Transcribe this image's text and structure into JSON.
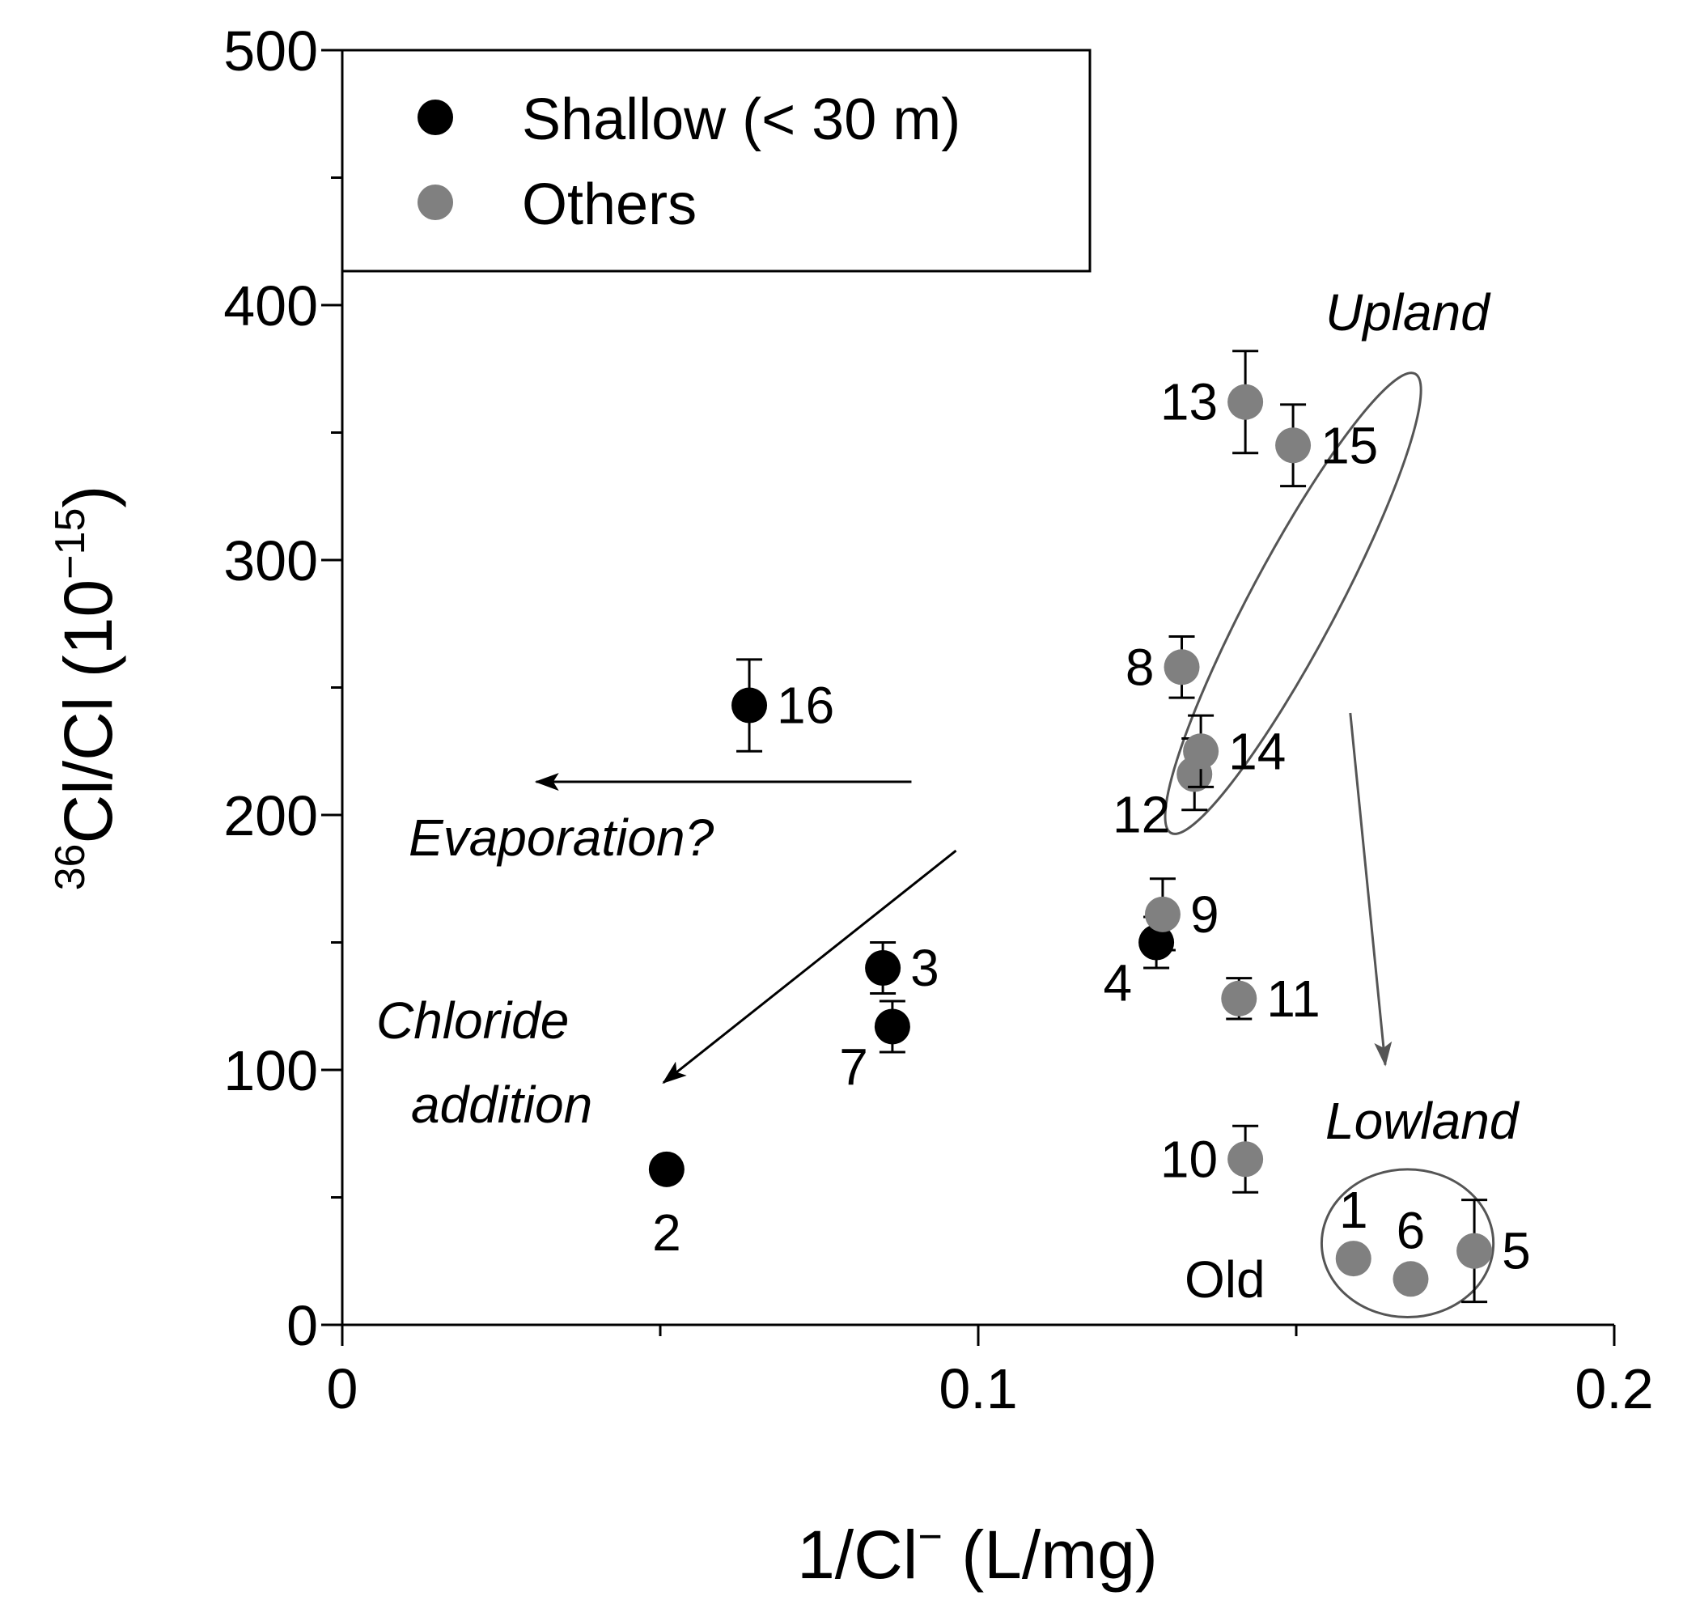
{
  "chart_data": {
    "type": "scatter",
    "title": "",
    "xlabel_main": "1/Cl",
    "xlabel_sup": "−",
    "xlabel_unit": " (L/mg)",
    "ylabel_sup": "36",
    "ylabel_main": "Cl/Cl (10",
    "ylabel_exp": "−15",
    "ylabel_close": ")",
    "xlim": [
      0,
      0.2
    ],
    "ylim": [
      0,
      500
    ],
    "x_ticks": [
      0,
      0.1,
      0.2
    ],
    "x_tick_labels": [
      "0",
      "0.1",
      "0.2"
    ],
    "y_ticks": [
      0,
      100,
      200,
      300,
      400,
      500
    ],
    "y_tick_labels": [
      "0",
      "100",
      "200",
      "300",
      "400",
      "500"
    ],
    "y_minor_step": 50,
    "legend": {
      "position": "top-left",
      "entries": [
        {
          "name": "Shallow (< 30 m)",
          "color": "#000000"
        },
        {
          "name": "Others",
          "color": "#808080"
        }
      ]
    },
    "series": [
      {
        "name": "Shallow (< 30 m)",
        "color": "#000000",
        "points": [
          {
            "id": "2",
            "x": 0.051,
            "y": 61,
            "err": 0,
            "label_pos": "below"
          },
          {
            "id": "3",
            "x": 0.085,
            "y": 140,
            "err": 10,
            "label_pos": "right"
          },
          {
            "id": "4",
            "x": 0.128,
            "y": 150,
            "err": 10,
            "label_pos": "below-left"
          },
          {
            "id": "7",
            "x": 0.0865,
            "y": 117,
            "err": 10,
            "label_pos": "below-left"
          },
          {
            "id": "16",
            "x": 0.064,
            "y": 243,
            "err": 18,
            "label_pos": "right"
          }
        ]
      },
      {
        "name": "Others",
        "color": "#808080",
        "points": [
          {
            "id": "1",
            "x": 0.159,
            "y": 26,
            "err": 0,
            "label_pos": "above"
          },
          {
            "id": "5",
            "x": 0.178,
            "y": 29,
            "err": 20,
            "label_pos": "right"
          },
          {
            "id": "6",
            "x": 0.168,
            "y": 18,
            "err": 0,
            "label_pos": "above"
          },
          {
            "id": "8",
            "x": 0.132,
            "y": 258,
            "err": 12,
            "label_pos": "left"
          },
          {
            "id": "9",
            "x": 0.129,
            "y": 161,
            "err": 14,
            "label_pos": "right"
          },
          {
            "id": "10",
            "x": 0.142,
            "y": 65,
            "err": 13,
            "label_pos": "left"
          },
          {
            "id": "11",
            "x": 0.141,
            "y": 128,
            "err": 8,
            "label_pos": "right"
          },
          {
            "id": "12",
            "x": 0.134,
            "y": 216,
            "err": 14,
            "label_pos": "below-left"
          },
          {
            "id": "13",
            "x": 0.142,
            "y": 362,
            "err": 20,
            "label_pos": "left"
          },
          {
            "id": "14",
            "x": 0.135,
            "y": 225,
            "err": 14,
            "label_pos": "right"
          },
          {
            "id": "15",
            "x": 0.1495,
            "y": 345,
            "err": 16,
            "label_pos": "right"
          }
        ]
      }
    ],
    "annotations": [
      {
        "id": "evaporation",
        "text": "Evaporation?",
        "style": "italic"
      },
      {
        "id": "chloride-1",
        "text": "Chloride",
        "style": "italic"
      },
      {
        "id": "chloride-2",
        "text": "addition",
        "style": "italic"
      },
      {
        "id": "upland",
        "text": "Upland",
        "style": "italic"
      },
      {
        "id": "lowland",
        "text": "Lowland",
        "style": "italic"
      },
      {
        "id": "old",
        "text": "Old",
        "style": "normal"
      }
    ],
    "arrows": [
      {
        "name": "evaporation-arrow",
        "from": [
          0.0895,
          213
        ],
        "to": [
          0.0305,
          213
        ],
        "color": "#000000"
      },
      {
        "name": "chloride-addition-arrow",
        "from": [
          0.0965,
          186
        ],
        "to": [
          0.0505,
          95
        ],
        "color": "#000000"
      },
      {
        "name": "upland-to-lowland-arrow",
        "from": [
          0.1585,
          240
        ],
        "to": [
          0.164,
          102
        ],
        "color": "#555555"
      }
    ],
    "ellipses": [
      {
        "name": "upland-ellipse",
        "center": [
          0.1495,
          283
        ],
        "semi_axes": [
          0.0068,
          102
        ],
        "rotation_deg": 28,
        "color": "#555555"
      },
      {
        "name": "lowland-ellipse",
        "center": [
          0.1675,
          32
        ],
        "semi_axes": [
          0.0135,
          29
        ],
        "rotation_deg": 0,
        "color": "#555555"
      }
    ]
  }
}
